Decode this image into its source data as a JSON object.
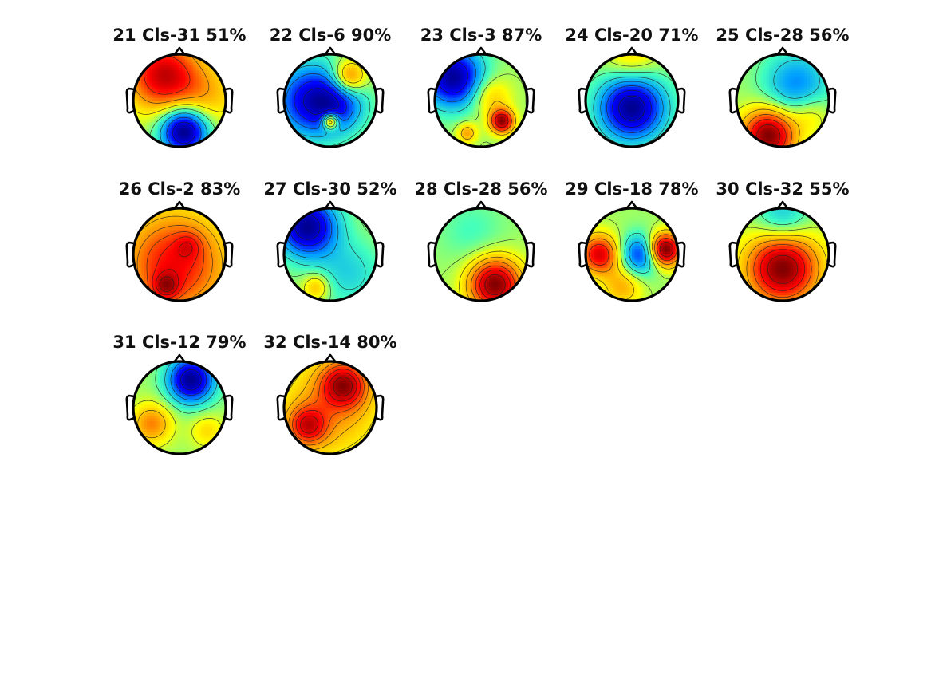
{
  "colors": {
    "colormap": [
      "#00008f",
      "#0000ff",
      "#00a0ff",
      "#40ffbf",
      "#ffff00",
      "#ff9000",
      "#ff0000",
      "#800000"
    ],
    "outline": "#000000",
    "contour": "#222222"
  },
  "components": [
    {
      "index": 21,
      "title": "21 Cls-31 51%",
      "sources": [
        [
          -0.35,
          -0.55,
          0.9,
          0.55
        ],
        [
          0.1,
          0.65,
          -1.2,
          0.35
        ],
        [
          0.6,
          -0.1,
          0.3,
          0.5
        ]
      ]
    },
    {
      "index": 22,
      "title": "22 Cls-6 90%",
      "sources": [
        [
          -0.4,
          0.0,
          -0.8,
          0.55
        ],
        [
          0.4,
          -0.5,
          0.6,
          0.25
        ],
        [
          0.0,
          0.45,
          0.9,
          0.12
        ],
        [
          0.2,
          0.1,
          -0.4,
          0.4
        ]
      ]
    },
    {
      "index": 23,
      "title": "23 Cls-3 87%",
      "sources": [
        [
          -0.6,
          -0.5,
          -1.2,
          0.45
        ],
        [
          0.45,
          0.45,
          1.2,
          0.18
        ],
        [
          0.2,
          -0.1,
          0.4,
          0.3
        ],
        [
          -0.3,
          0.7,
          0.5,
          0.15
        ]
      ]
    },
    {
      "index": 24,
      "title": "24 Cls-20 71%",
      "sources": [
        [
          0.0,
          0.15,
          -1.1,
          0.5
        ],
        [
          0.0,
          -0.9,
          0.3,
          0.4
        ]
      ]
    },
    {
      "index": 25,
      "title": "25 Cls-28 56%",
      "sources": [
        [
          -0.3,
          0.75,
          1.3,
          0.4
        ],
        [
          0.3,
          -0.35,
          -0.6,
          0.5
        ],
        [
          0.6,
          0.3,
          0.3,
          0.3
        ]
      ]
    },
    {
      "index": 26,
      "title": "26 Cls-2 83%",
      "sources": [
        [
          -0.1,
          0.2,
          0.7,
          0.8
        ],
        [
          -0.3,
          0.7,
          0.4,
          0.2
        ],
        [
          0.2,
          -0.2,
          0.2,
          0.2
        ]
      ]
    },
    {
      "index": 27,
      "title": "27 Cls-30 52%",
      "sources": [
        [
          -0.5,
          -0.6,
          -1.1,
          0.45
        ],
        [
          0.4,
          0.4,
          -0.3,
          0.5
        ],
        [
          -0.3,
          0.7,
          0.4,
          0.2
        ]
      ]
    },
    {
      "index": 28,
      "title": "28 Cls-28 56%",
      "sources": [
        [
          0.3,
          0.65,
          1.4,
          0.4
        ],
        [
          -0.2,
          -0.5,
          -0.2,
          0.5
        ]
      ]
    },
    {
      "index": 29,
      "title": "29 Cls-18 78%",
      "sources": [
        [
          0.7,
          -0.1,
          1.0,
          0.25
        ],
        [
          -0.7,
          0.0,
          0.7,
          0.3
        ],
        [
          0.2,
          0.0,
          -0.6,
          0.3
        ],
        [
          -0.2,
          0.7,
          0.3,
          0.3
        ]
      ]
    },
    {
      "index": 30,
      "title": "30 Cls-32 55%",
      "sources": [
        [
          0.0,
          0.3,
          1.4,
          0.55
        ],
        [
          0.0,
          -0.8,
          -0.5,
          0.4
        ]
      ]
    },
    {
      "index": 31,
      "title": "31 Cls-12 79%",
      "sources": [
        [
          0.25,
          -0.6,
          -1.3,
          0.35
        ],
        [
          -0.6,
          0.35,
          0.6,
          0.3
        ],
        [
          0.6,
          0.5,
          0.3,
          0.25
        ]
      ]
    },
    {
      "index": 32,
      "title": "32 Cls-14 80%",
      "sources": [
        [
          0.3,
          -0.5,
          1.3,
          0.35
        ],
        [
          -0.5,
          0.4,
          1.1,
          0.3
        ],
        [
          0.0,
          0.0,
          0.7,
          0.8
        ]
      ]
    }
  ]
}
